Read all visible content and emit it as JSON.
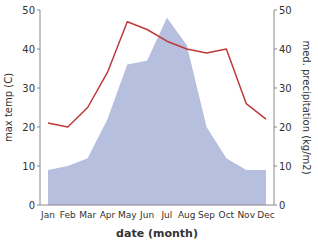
{
  "chart_data": {
    "type": "line",
    "xlabel": "date (month)",
    "ylabel": "max temp (C)",
    "y2label": "med. precipitation (kg/m2)",
    "categories": [
      "Jan",
      "Feb",
      "Mar",
      "Apr",
      "May",
      "Jun",
      "Jul",
      "Aug",
      "Sep",
      "Oct",
      "Nov",
      "Dec"
    ],
    "series": [
      {
        "type": "area",
        "color": "#aab4d8",
        "axis": "y2",
        "values": [
          9,
          10,
          12,
          22,
          36,
          37,
          48,
          41,
          20,
          12,
          9,
          9
        ]
      },
      {
        "type": "line",
        "color": "#c0393b",
        "values": [
          21,
          20,
          25,
          34,
          47,
          45,
          42,
          40,
          39,
          40,
          26,
          22
        ]
      }
    ],
    "ylim": [
      0,
      50
    ],
    "yticks": [
      0,
      10,
      20,
      30,
      40,
      50
    ],
    "y2lim": [
      0,
      50
    ],
    "y2ticks": [
      0,
      10,
      20,
      30,
      40,
      50
    ],
    "grid": false
  }
}
